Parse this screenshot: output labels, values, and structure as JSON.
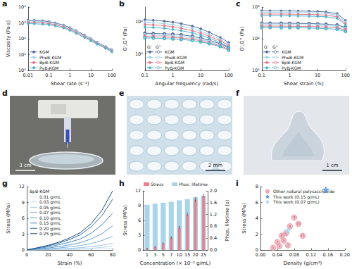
{
  "chart_data": [
    {
      "panel": "a",
      "type": "line",
      "log": true,
      "grid": false,
      "legend": "lower left",
      "marker": "circle",
      "x_label": "Shear rate (s⁻¹)",
      "y_label": "Viscosity (Pa·s)",
      "xlim": [
        0.01,
        100
      ],
      "xticks": [
        0.01,
        0.1,
        1,
        10,
        100
      ],
      "ylim": [
        1,
        10000
      ],
      "yticks": [
        {
          "value": 1,
          "label": "10⁰"
        },
        {
          "value": 10,
          "label": "10¹"
        },
        {
          "value": 100,
          "label": "10²"
        },
        {
          "value": 1000,
          "label": "10³"
        },
        {
          "value": 10000,
          "label": "10⁴"
        }
      ],
      "x": [
        0.01,
        0.02,
        0.05,
        0.1,
        0.2,
        0.5,
        1,
        2,
        5,
        10,
        20,
        50,
        100
      ],
      "series": [
        {
          "name": "KGM",
          "color": "#4f6d9c",
          "values": [
            1500,
            1450,
            1350,
            1200,
            1000,
            720,
            500,
            320,
            170,
            100,
            60,
            32,
            20
          ]
        },
        {
          "name": "PheB-KGM",
          "color": "#9fd2ea",
          "values": [
            1300,
            1260,
            1180,
            1060,
            900,
            650,
            450,
            290,
            155,
            92,
            55,
            30,
            18
          ]
        },
        {
          "name": "BpB-KGM",
          "color": "#e47589",
          "values": [
            1100,
            1070,
            1000,
            900,
            770,
            560,
            390,
            250,
            135,
            82,
            50,
            27,
            16
          ]
        },
        {
          "name": "PyB-KGM",
          "color": "#4fb3c8",
          "values": [
            900,
            880,
            830,
            750,
            650,
            480,
            340,
            220,
            120,
            74,
            45,
            25,
            15
          ]
        }
      ]
    },
    {
      "panel": "b",
      "type": "line",
      "log": true,
      "grid": false,
      "legend": "lower left",
      "x_label": "Angular frequency (rad/s)",
      "y_label": "G',G'' (Pa)",
      "xlim": [
        0.1,
        100
      ],
      "xticks": [
        0.1,
        1,
        10,
        100
      ],
      "ylim": [
        30,
        3000
      ],
      "yticks": [
        {
          "value": 100,
          "label": "10²"
        },
        {
          "value": 1000,
          "label": "10³"
        }
      ],
      "x": [
        0.1,
        0.2,
        0.5,
        1,
        2,
        5,
        10,
        20,
        50,
        100
      ],
      "series": [
        {
          "name": "KGM",
          "modulus": "G'",
          "marker": "circle",
          "color": "#4f6d9c",
          "values": [
            1200,
            1150,
            1080,
            1000,
            900,
            750,
            620,
            480,
            330,
            230
          ]
        },
        {
          "name": "KGM",
          "modulus": "G''",
          "marker": "open circle",
          "color": "#4f6d9c",
          "values": [
            450,
            440,
            430,
            420,
            400,
            360,
            320,
            270,
            210,
            160
          ]
        },
        {
          "name": "PheB-KGM",
          "modulus": "G'",
          "marker": "circle",
          "color": "#9fd2ea",
          "values": [
            1000,
            960,
            900,
            830,
            750,
            630,
            520,
            410,
            290,
            200
          ]
        },
        {
          "name": "PheB-KGM",
          "modulus": "G''",
          "marker": "open circle",
          "color": "#9fd2ea",
          "values": [
            400,
            390,
            380,
            370,
            350,
            320,
            285,
            245,
            195,
            150
          ]
        },
        {
          "name": "BpB-KGM",
          "modulus": "G'",
          "marker": "circle",
          "color": "#e47589",
          "values": [
            850,
            820,
            770,
            710,
            640,
            540,
            450,
            360,
            260,
            185
          ]
        },
        {
          "name": "BpB-KGM",
          "modulus": "G''",
          "marker": "open circle",
          "color": "#e47589",
          "values": [
            360,
            350,
            340,
            330,
            315,
            290,
            260,
            225,
            180,
            140
          ]
        },
        {
          "name": "PyB-KGM",
          "modulus": "G'",
          "marker": "circle",
          "color": "#4fb3c8",
          "values": [
            700,
            680,
            640,
            590,
            540,
            460,
            390,
            315,
            230,
            165
          ]
        },
        {
          "name": "PyB-KGM",
          "modulus": "G''",
          "marker": "open circle",
          "color": "#4fb3c8",
          "values": [
            320,
            315,
            305,
            295,
            285,
            265,
            240,
            210,
            170,
            130
          ]
        }
      ]
    },
    {
      "panel": "c",
      "type": "line",
      "log": true,
      "grid": false,
      "legend": "lower left",
      "x_label": "Shear strain (%)",
      "y_label": "G',G'' (Pa)",
      "xlim": [
        0.1,
        100
      ],
      "xticks": [
        0.1,
        1,
        10,
        100
      ],
      "ylim": [
        10,
        1000
      ],
      "yticks": [
        {
          "value": 10,
          "label": "10¹"
        },
        {
          "value": 100,
          "label": "10²"
        },
        {
          "value": 1000,
          "label": "10³"
        }
      ],
      "x": [
        0.1,
        0.2,
        0.5,
        1,
        2,
        5,
        10,
        20,
        50,
        100
      ],
      "series": [
        {
          "name": "KGM",
          "modulus": "G'",
          "marker": "circle",
          "color": "#4f6d9c",
          "values": [
            760,
            760,
            758,
            755,
            750,
            740,
            725,
            700,
            620,
            380
          ]
        },
        {
          "name": "KGM",
          "modulus": "G''",
          "marker": "open circle",
          "color": "#4f6d9c",
          "values": [
            310,
            310,
            309,
            308,
            306,
            302,
            296,
            288,
            272,
            230
          ]
        },
        {
          "name": "PheB-KGM",
          "modulus": "G'",
          "marker": "circle",
          "color": "#9fd2ea",
          "values": [
            680,
            680,
            678,
            675,
            670,
            662,
            650,
            628,
            560,
            340
          ]
        },
        {
          "name": "PheB-KGM",
          "modulus": "G''",
          "marker": "open circle",
          "color": "#9fd2ea",
          "values": [
            280,
            280,
            279,
            278,
            276,
            273,
            268,
            260,
            246,
            210
          ]
        },
        {
          "name": "BpB-KGM",
          "modulus": "G'",
          "marker": "circle",
          "color": "#e47589",
          "values": [
            600,
            600,
            598,
            596,
            592,
            585,
            574,
            555,
            495,
            300
          ]
        },
        {
          "name": "BpB-KGM",
          "modulus": "G''",
          "marker": "open circle",
          "color": "#e47589",
          "values": [
            250,
            250,
            249,
            248,
            246,
            243,
            239,
            232,
            220,
            190
          ]
        },
        {
          "name": "PyB-KGM",
          "modulus": "G'",
          "marker": "circle",
          "color": "#4fb3c8",
          "values": [
            530,
            530,
            528,
            526,
            523,
            517,
            508,
            492,
            440,
            270
          ]
        },
        {
          "name": "PyB-KGM",
          "modulus": "G''",
          "marker": "open circle",
          "color": "#4fb3c8",
          "values": [
            225,
            225,
            224,
            223,
            222,
            219,
            215,
            209,
            198,
            170
          ]
        }
      ]
    },
    {
      "panel": "g",
      "type": "line",
      "grid": false,
      "legend": "upper left",
      "legend_title": "BpB-KGM",
      "x_label": "Strain (%)",
      "y_label": "Stress (MPa)",
      "xlim": [
        0,
        80
      ],
      "xticks": [
        0,
        20,
        40,
        60,
        80
      ],
      "ylim": [
        0,
        12
      ],
      "yticks": [
        0,
        3,
        6,
        9,
        12
      ],
      "x": [
        0,
        10,
        20,
        30,
        40,
        50,
        60,
        70,
        80
      ],
      "series": [
        {
          "name": "0.01 g/mL",
          "color": "#d6e8f4",
          "values": [
            0,
            0.02,
            0.04,
            0.06,
            0.09,
            0.12,
            0.17,
            0.25,
            0.35
          ]
        },
        {
          "name": "0.03 g/mL",
          "color": "#b9d7ec",
          "values": [
            0,
            0.04,
            0.08,
            0.13,
            0.18,
            0.25,
            0.35,
            0.5,
            0.7
          ]
        },
        {
          "name": "0.05 g/mL",
          "color": "#9cc6e3",
          "values": [
            0,
            0.07,
            0.14,
            0.22,
            0.32,
            0.45,
            0.65,
            0.9,
            1.3
          ]
        },
        {
          "name": "0.07 g/mL",
          "color": "#7fb2d8",
          "values": [
            0,
            0.12,
            0.25,
            0.4,
            0.6,
            0.85,
            1.25,
            1.8,
            2.6
          ]
        },
        {
          "name": "0.10 g/mL",
          "color": "#5f9bcb",
          "values": [
            0,
            0.2,
            0.4,
            0.65,
            1.0,
            1.4,
            2.1,
            3.1,
            4.6
          ]
        },
        {
          "name": "0.15 g/mL",
          "color": "#4483bb",
          "values": [
            0,
            0.3,
            0.6,
            1.0,
            1.5,
            2.1,
            3.2,
            4.8,
            7.0
          ]
        },
        {
          "name": "0.20 g/mL",
          "color": "#2e6aa5",
          "values": [
            0,
            0.4,
            0.8,
            1.3,
            2.0,
            2.9,
            4.4,
            6.5,
            9.6
          ]
        },
        {
          "name": "0.25 g/mL",
          "color": "#1d4f86",
          "values": [
            0,
            0.45,
            0.9,
            1.5,
            2.3,
            3.3,
            5.0,
            7.5,
            11.2
          ]
        }
      ]
    },
    {
      "panel": "h",
      "type": "bar",
      "grid": false,
      "legend": "top",
      "x_label": "Concentration (× 10⁻² g/mL)",
      "y_label": "Stress (MPa)",
      "y2_label": "Phos. lifetime (s)",
      "categories": [
        "1",
        "3",
        "5",
        "7",
        "10",
        "15",
        "20",
        "25"
      ],
      "ylim": [
        0,
        12
      ],
      "yticks": [
        0,
        3,
        6,
        9,
        12
      ],
      "y2lim": [
        0,
        2
      ],
      "y2ticks": [
        {
          "value": 0,
          "label": "0.0"
        },
        0.4,
        0.8,
        1.2,
        1.6,
        {
          "value": 2,
          "label": "2.0"
        }
      ],
      "series": [
        {
          "name": "Stress",
          "color": "#e8808f",
          "values": [
            0.3,
            0.6,
            1.3,
            2.5,
            4.5,
            7.2,
            10.2,
            10.9
          ],
          "errors": [
            0.05,
            0.1,
            0.15,
            0.2,
            0.3,
            0.3,
            0.4,
            0.3
          ]
        },
        {
          "name": "Phos. lifetime",
          "axis": "y2",
          "color": "#a9d4ea",
          "values": [
            1.53,
            1.57,
            1.6,
            1.63,
            1.68,
            1.72,
            1.78,
            1.83
          ]
        }
      ]
    },
    {
      "panel": "i",
      "type": "scatter",
      "grid": false,
      "legend": "upper left",
      "x_label": "Density (g/cm³)",
      "y_label": "Stress (MPa)",
      "xlim": [
        0,
        0.2
      ],
      "xticks": [
        {
          "value": 0,
          "label": "0.00"
        },
        0.04,
        0.08,
        0.12,
        0.16,
        {
          "value": 0.2,
          "label": "0.20"
        }
      ],
      "ylim": [
        0,
        8
      ],
      "yticks": [
        0,
        2,
        4,
        6,
        8
      ],
      "series": [
        {
          "name": "Other natural polysaccharide",
          "marker": "circle",
          "color": "#f3aab6",
          "x": [
            0.03,
            0.04,
            0.045,
            0.05,
            0.055,
            0.06,
            0.065,
            0.07,
            0.08,
            0.09,
            0.1
          ],
          "values": [
            0.3,
            1.0,
            0.5,
            1.8,
            1.2,
            2.1,
            0.6,
            3.0,
            4.1,
            3.3,
            1.8
          ],
          "point_labels": [
            "1",
            "2",
            "3",
            "4",
            "5",
            "6",
            "7",
            "8",
            "9",
            "10",
            "11"
          ]
        },
        {
          "name": "This work (0.15 g/mL)",
          "marker": "star",
          "color": "#4a90d9",
          "x": [
            0.155
          ],
          "values": [
            7.6
          ]
        },
        {
          "name": "This work (0.07 g/mL)",
          "marker": "star",
          "color": "#a8d3ee",
          "x": [
            0.065
          ],
          "values": [
            2.5
          ]
        }
      ]
    }
  ],
  "photos": [
    {
      "panel": "d",
      "scale_bar": "3 cm"
    },
    {
      "panel": "e",
      "scale_bar": "2 mm"
    },
    {
      "panel": "f",
      "scale_bar": "1 cm"
    }
  ]
}
